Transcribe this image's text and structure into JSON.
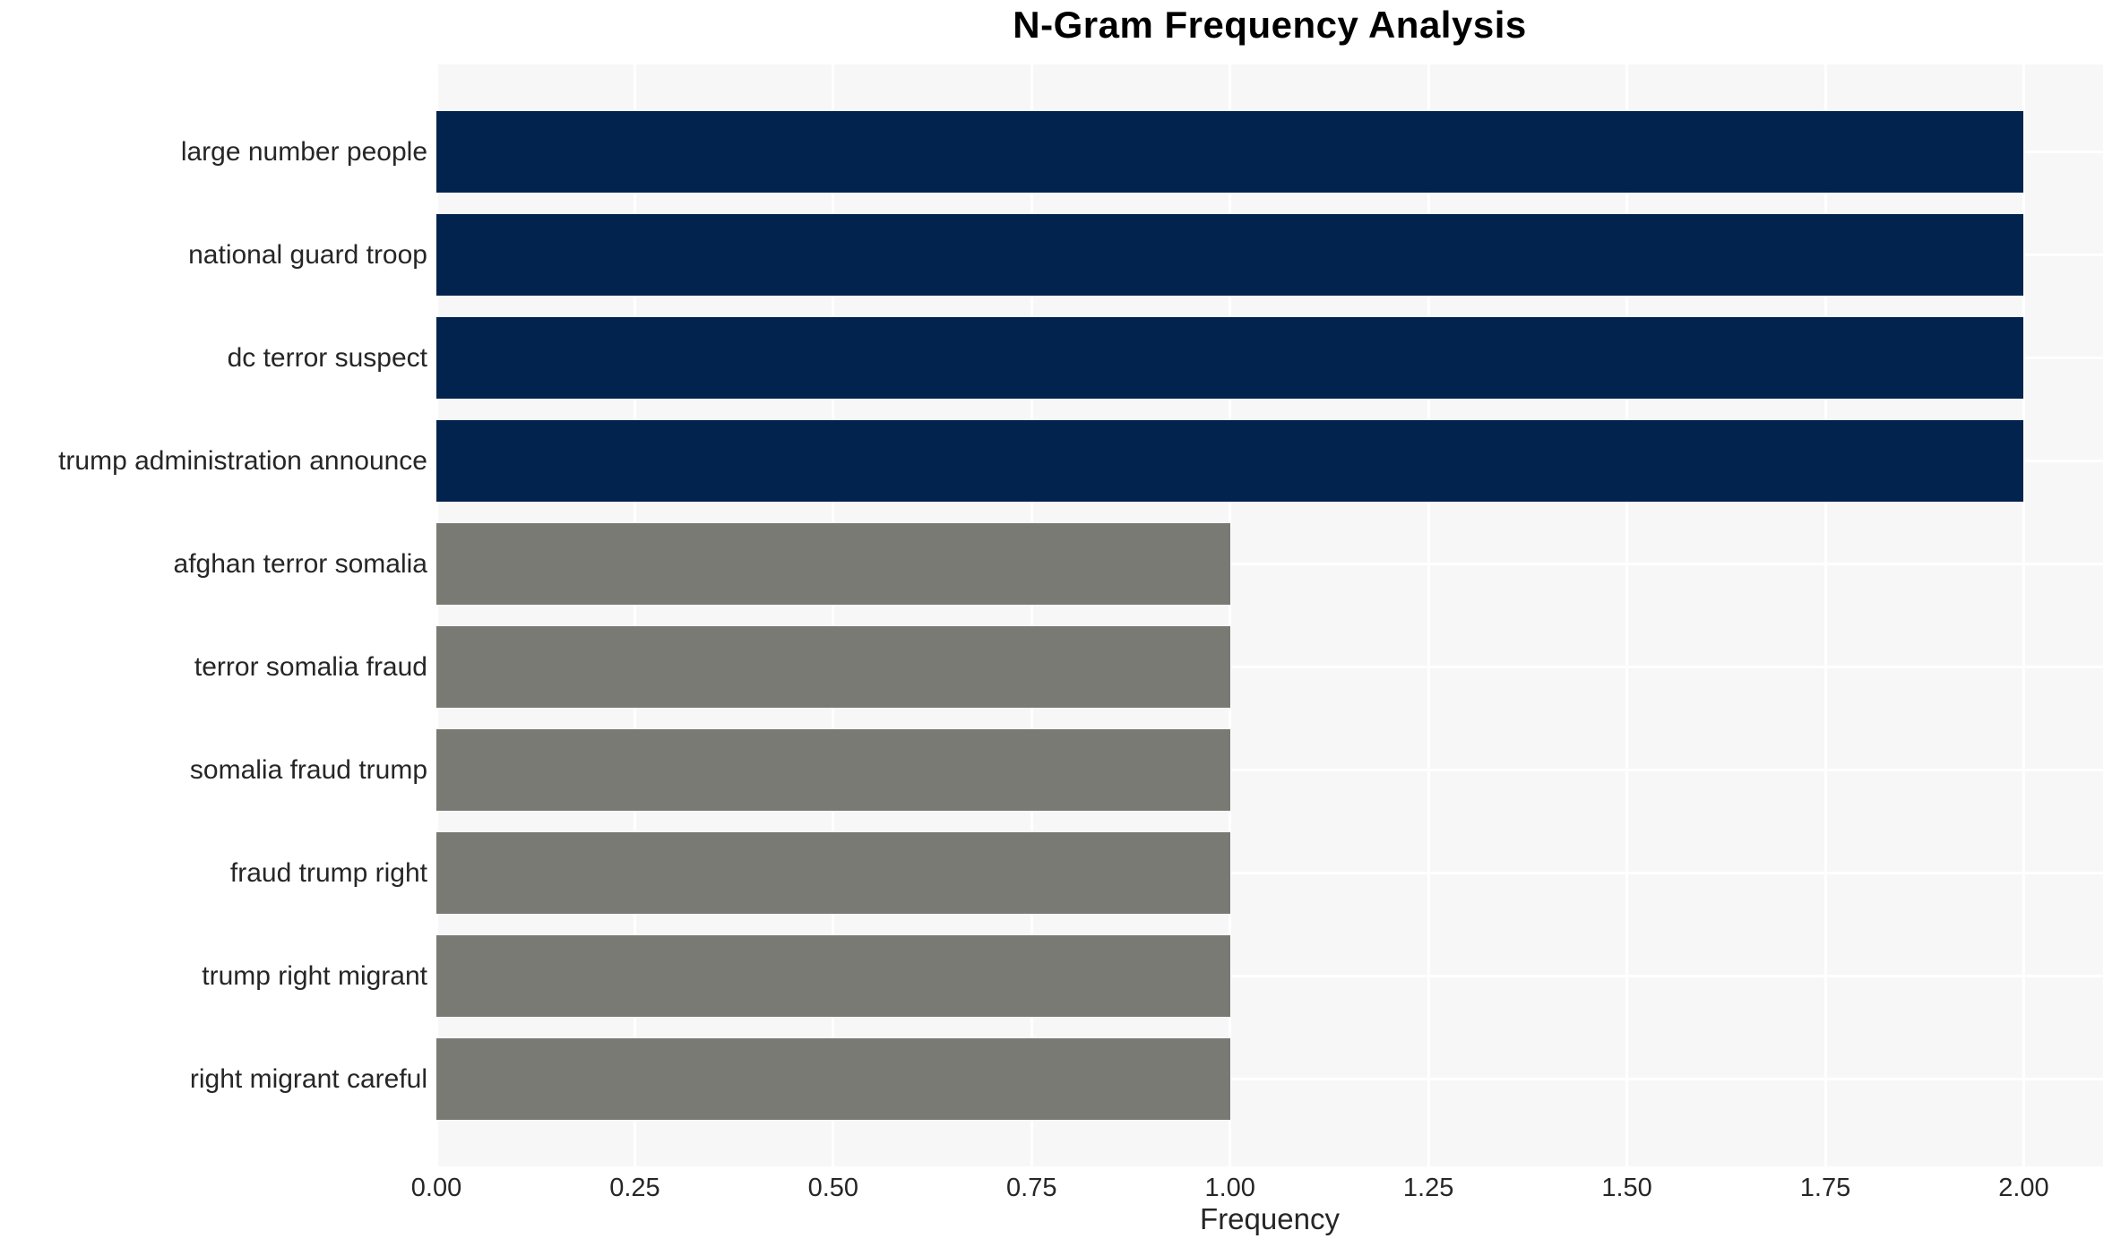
{
  "chart_data": {
    "type": "bar",
    "orientation": "horizontal",
    "title": "N-Gram Frequency Analysis",
    "xlabel": "Frequency",
    "ylabel": "",
    "categories": [
      "large number people",
      "national guard troop",
      "dc terror suspect",
      "trump administration announce",
      "afghan terror somalia",
      "terror somalia fraud",
      "somalia fraud trump",
      "fraud trump right",
      "trump right migrant",
      "right migrant careful"
    ],
    "values": [
      2,
      2,
      2,
      2,
      1,
      1,
      1,
      1,
      1,
      1
    ],
    "bar_colors": [
      "#02234d",
      "#02234d",
      "#02234d",
      "#02234d",
      "#7a7a75",
      "#7a7a75",
      "#7a7a75",
      "#7a7a75",
      "#7a7a75",
      "#7a7a75"
    ],
    "xlim": [
      0,
      2.1
    ],
    "xticks": [
      0,
      0.25,
      0.5,
      0.75,
      1.0,
      1.25,
      1.5,
      1.75,
      2.0
    ],
    "xticklabels": [
      "0.00",
      "0.25",
      "0.50",
      "0.75",
      "1.00",
      "1.25",
      "1.50",
      "1.75",
      "2.00"
    ],
    "grid": "white gridlines on light panel; vertical at x ticks, horizontal at bar centers",
    "legend": "none"
  },
  "colors": {
    "bar_high_frequency": "#02234d",
    "bar_low_frequency": "#7a7a75",
    "plot_background": "#f7f7f7",
    "page_background": "#ffffff",
    "gridline": "#ffffff",
    "tick_text": "#262626",
    "title_text": "#000000"
  }
}
